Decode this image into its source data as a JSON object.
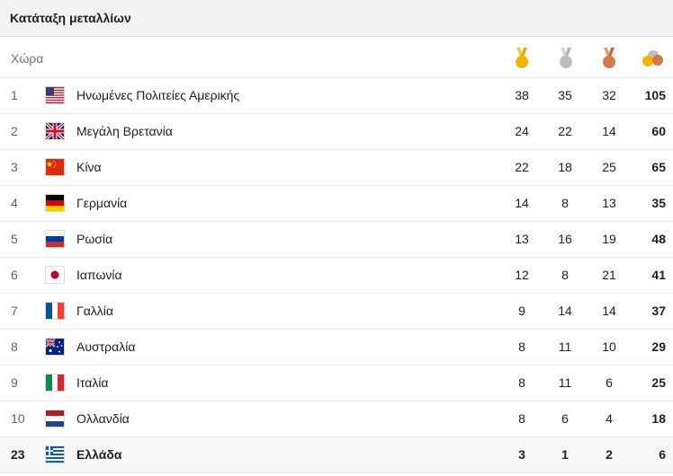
{
  "header": {
    "title": "Κατάταξη μεταλλίων"
  },
  "columns": {
    "country": "Χώρα",
    "gold_icon": "gold-medal-icon",
    "silver_icon": "silver-medal-icon",
    "bronze_icon": "bronze-medal-icon",
    "total_icon": "total-medals-icon"
  },
  "colors": {
    "gold": "#f4b400",
    "silver": "#bdbdbd",
    "bronze": "#d8774a"
  },
  "rows": [
    {
      "rank": "1",
      "country": "Ηνωμένες Πολιτείες Αμερικής",
      "flag": "us-flag-icon",
      "gold": "38",
      "silver": "35",
      "bronze": "32",
      "total": "105"
    },
    {
      "rank": "2",
      "country": "Μεγάλη Βρετανία",
      "flag": "gb-flag-icon",
      "gold": "24",
      "silver": "22",
      "bronze": "14",
      "total": "60"
    },
    {
      "rank": "3",
      "country": "Κίνα",
      "flag": "cn-flag-icon",
      "gold": "22",
      "silver": "18",
      "bronze": "25",
      "total": "65"
    },
    {
      "rank": "4",
      "country": "Γερμανία",
      "flag": "de-flag-icon",
      "gold": "14",
      "silver": "8",
      "bronze": "13",
      "total": "35"
    },
    {
      "rank": "5",
      "country": "Ρωσία",
      "flag": "ru-flag-icon",
      "gold": "13",
      "silver": "16",
      "bronze": "19",
      "total": "48"
    },
    {
      "rank": "6",
      "country": "Ιαπωνία",
      "flag": "jp-flag-icon",
      "gold": "12",
      "silver": "8",
      "bronze": "21",
      "total": "41"
    },
    {
      "rank": "7",
      "country": "Γαλλία",
      "flag": "fr-flag-icon",
      "gold": "9",
      "silver": "14",
      "bronze": "14",
      "total": "37"
    },
    {
      "rank": "8",
      "country": "Αυστραλία",
      "flag": "au-flag-icon",
      "gold": "8",
      "silver": "11",
      "bronze": "10",
      "total": "29"
    },
    {
      "rank": "9",
      "country": "Ιταλία",
      "flag": "it-flag-icon",
      "gold": "8",
      "silver": "11",
      "bronze": "6",
      "total": "25"
    },
    {
      "rank": "10",
      "country": "Ολλανδία",
      "flag": "nl-flag-icon",
      "gold": "8",
      "silver": "6",
      "bronze": "4",
      "total": "18"
    },
    {
      "rank": "23",
      "country": "Ελλάδα",
      "flag": "gr-flag-icon",
      "gold": "3",
      "silver": "1",
      "bronze": "2",
      "total": "6"
    }
  ]
}
